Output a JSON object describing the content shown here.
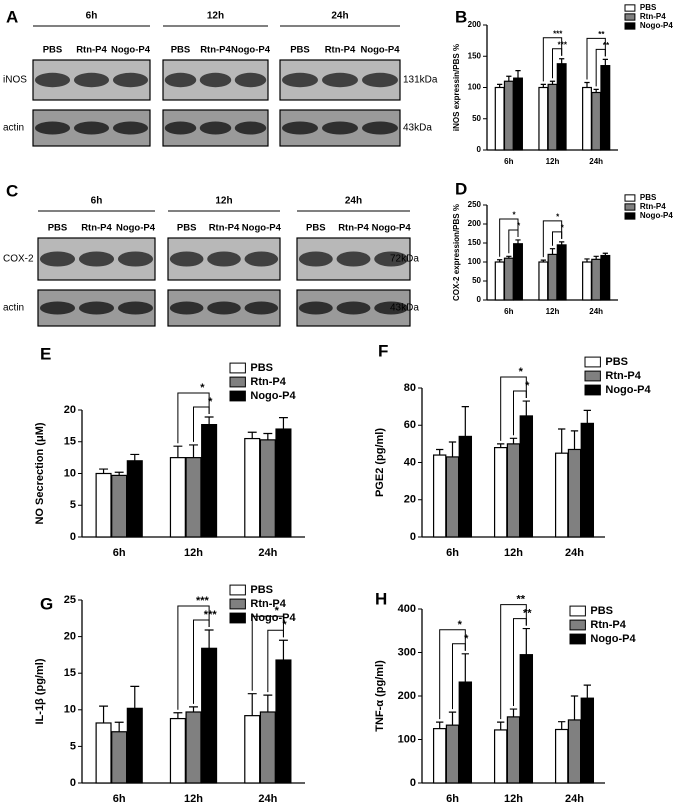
{
  "blots": [
    {
      "letter": "A",
      "times": [
        "6h",
        "12h",
        "24h"
      ],
      "lanes": [
        "PBS",
        "Rtn-P4",
        "Nogo-P4"
      ],
      "rows": [
        {
          "label": "iNOS",
          "size": "131kDa"
        },
        {
          "label": "actin",
          "size": "43kDa"
        }
      ]
    },
    {
      "letter": "C",
      "times": [
        "6h",
        "12h",
        "24h"
      ],
      "lanes": [
        "PBS",
        "Rtn-P4",
        "Nogo-P4"
      ],
      "rows": [
        {
          "label": "COX-2",
          "size": "72kDa"
        },
        {
          "label": "actin",
          "size": "43kDa"
        }
      ]
    }
  ],
  "chart_data": [
    {
      "type": "bar",
      "panel_label": "B",
      "ylabel": "iNOS expressin/PBS %",
      "categories": [
        "6h",
        "12h",
        "24h"
      ],
      "series": [
        {
          "name": "PBS",
          "color": "#ffffff",
          "values": [
            100,
            100,
            100
          ],
          "errors": [
            5,
            5,
            8
          ]
        },
        {
          "name": "Rtn-P4",
          "color": "#808080",
          "values": [
            110,
            105,
            92
          ],
          "errors": [
            8,
            5,
            5
          ]
        },
        {
          "name": "Nogo-P4",
          "color": "#000000",
          "values": [
            115,
            138,
            135
          ],
          "errors": [
            12,
            8,
            10
          ]
        }
      ],
      "ylim": [
        0,
        200
      ],
      "yticks": [
        0,
        50,
        100,
        150,
        200
      ],
      "annotations": [
        [],
        [
          "***",
          "***"
        ],
        [
          "**",
          "**"
        ]
      ]
    },
    {
      "type": "bar",
      "panel_label": "D",
      "ylabel": "COX-2 expression/PBS %",
      "categories": [
        "6h",
        "12h",
        "24h"
      ],
      "series": [
        {
          "name": "PBS",
          "color": "#ffffff",
          "values": [
            100,
            100,
            100
          ],
          "errors": [
            6,
            5,
            8
          ]
        },
        {
          "name": "Rtn-P4",
          "color": "#808080",
          "values": [
            110,
            120,
            107
          ],
          "errors": [
            5,
            15,
            8
          ]
        },
        {
          "name": "Nogo-P4",
          "color": "#000000",
          "values": [
            148,
            145,
            117
          ],
          "errors": [
            10,
            8,
            6
          ]
        }
      ],
      "ylim": [
        0,
        250
      ],
      "yticks": [
        0,
        50,
        100,
        150,
        200,
        250
      ],
      "annotations": [
        [
          "*",
          "*"
        ],
        [
          "*",
          "*"
        ],
        []
      ]
    },
    {
      "type": "bar",
      "panel_label": "E",
      "ylabel": "NO Secrection (μM)",
      "categories": [
        "6h",
        "12h",
        "24h"
      ],
      "series": [
        {
          "name": "PBS",
          "color": "#ffffff",
          "values": [
            10,
            12.5,
            15.5
          ],
          "errors": [
            0.7,
            1.8,
            1
          ]
        },
        {
          "name": "Rtn-P4",
          "color": "#808080",
          "values": [
            9.7,
            12.5,
            15.3
          ],
          "errors": [
            0.5,
            2,
            1
          ]
        },
        {
          "name": "Nogo-P4",
          "color": "#000000",
          "values": [
            12,
            17.7,
            17
          ],
          "errors": [
            1,
            1.2,
            1.8
          ]
        }
      ],
      "ylim": [
        0,
        20
      ],
      "yticks": [
        0,
        5,
        10,
        15,
        20
      ],
      "annotations": [
        [],
        [
          "*",
          "*"
        ],
        []
      ]
    },
    {
      "type": "bar",
      "panel_label": "F",
      "ylabel": "PGE2 (pg/ml)",
      "categories": [
        "6h",
        "12h",
        "24h"
      ],
      "series": [
        {
          "name": "PBS",
          "color": "#ffffff",
          "values": [
            44,
            48,
            45
          ],
          "errors": [
            3,
            2,
            13
          ]
        },
        {
          "name": "Rtn-P4",
          "color": "#808080",
          "values": [
            43,
            50,
            47
          ],
          "errors": [
            8,
            3,
            10
          ]
        },
        {
          "name": "Nogo-P4",
          "color": "#000000",
          "values": [
            54,
            65,
            61
          ],
          "errors": [
            16,
            8,
            7
          ]
        }
      ],
      "ylim": [
        0,
        80
      ],
      "yticks": [
        0,
        20,
        40,
        60,
        80
      ],
      "annotations": [
        [],
        [
          "*",
          "*"
        ],
        []
      ]
    },
    {
      "type": "bar",
      "panel_label": "G",
      "ylabel": "IL-1β  (pg/ml)",
      "categories": [
        "6h",
        "12h",
        "24h"
      ],
      "series": [
        {
          "name": "PBS",
          "color": "#ffffff",
          "values": [
            8.2,
            8.8,
            9.2
          ],
          "errors": [
            2.3,
            0.8,
            3
          ]
        },
        {
          "name": "Rtn-P4",
          "color": "#808080",
          "values": [
            7,
            9.7,
            9.7
          ],
          "errors": [
            1.3,
            0.7,
            2.3
          ]
        },
        {
          "name": "Nogo-P4",
          "color": "#000000",
          "values": [
            10.2,
            18.4,
            16.8
          ],
          "errors": [
            3,
            2.5,
            2.7
          ]
        }
      ],
      "ylim": [
        0,
        25
      ],
      "yticks": [
        0,
        5,
        10,
        15,
        20,
        25
      ],
      "annotations": [
        [],
        [
          "***",
          "***"
        ],
        [
          "*",
          "*"
        ]
      ]
    },
    {
      "type": "bar",
      "panel_label": "H",
      "ylabel": "TNF-α  (pg/ml)",
      "categories": [
        "6h",
        "12h",
        "24h"
      ],
      "series": [
        {
          "name": "PBS",
          "color": "#ffffff",
          "values": [
            125,
            122,
            123
          ],
          "errors": [
            15,
            18,
            18
          ]
        },
        {
          "name": "Rtn-P4",
          "color": "#808080",
          "values": [
            133,
            152,
            145
          ],
          "errors": [
            30,
            18,
            55
          ]
        },
        {
          "name": "Nogo-P4",
          "color": "#000000",
          "values": [
            232,
            295,
            195
          ],
          "errors": [
            65,
            60,
            30
          ]
        }
      ],
      "ylim": [
        0,
        400
      ],
      "yticks": [
        0,
        100,
        200,
        300,
        400
      ],
      "annotations": [
        [
          "*",
          "*"
        ],
        [
          "**",
          "**"
        ],
        []
      ]
    }
  ]
}
